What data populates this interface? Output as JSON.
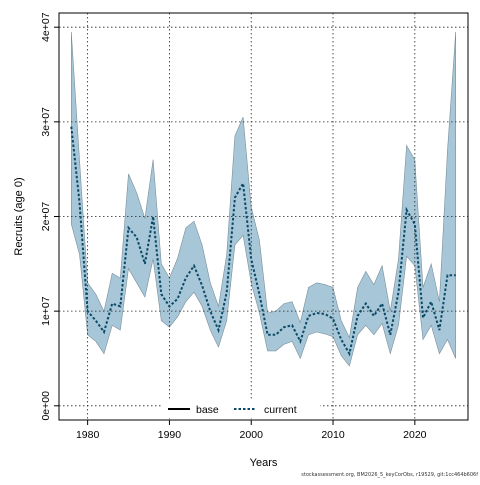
{
  "chart_data": {
    "type": "area",
    "xlabel": "Years",
    "ylabel": "Recruits (age 0)",
    "xlim": [
      1976.5,
      2026.5
    ],
    "ylim": [
      -1500000,
      41500000
    ],
    "x_ticks": [
      1980,
      1990,
      2000,
      2010,
      2020
    ],
    "x_tick_labels": [
      "1980",
      "1990",
      "2000",
      "2010",
      "2020"
    ],
    "y_ticks": [
      0,
      10000000,
      20000000,
      30000000,
      40000000
    ],
    "y_tick_labels": [
      "0e+00",
      "1e+07",
      "2e+07",
      "3e+07",
      "4e+07"
    ],
    "grid": true,
    "legend_position": "bottom-center",
    "legend": [
      {
        "name": "base",
        "style": "solid",
        "color": "#000000"
      },
      {
        "name": "current",
        "style": "dotted",
        "color": "#0a4a66"
      }
    ],
    "colors": {
      "band_fill": "#a7c6d7",
      "band_stroke": "#7a8f9a",
      "current_line": "#0a4a66",
      "grid": "#222222"
    },
    "x": [
      1978,
      1979,
      1980,
      1981,
      1982,
      1983,
      1984,
      1985,
      1986,
      1987,
      1988,
      1989,
      1990,
      1991,
      1992,
      1993,
      1994,
      1995,
      1996,
      1997,
      1998,
      1999,
      2000,
      2001,
      2002,
      2003,
      2004,
      2005,
      2006,
      2007,
      2008,
      2009,
      2010,
      2011,
      2012,
      2013,
      2014,
      2015,
      2016,
      2017,
      2018,
      2019,
      2020,
      2021,
      2022,
      2023,
      2024,
      2025
    ],
    "series": [
      {
        "name": "current",
        "values": [
          29500000,
          21500000,
          10000000,
          9000000,
          7800000,
          10800000,
          10500000,
          18800000,
          17800000,
          15000000,
          20000000,
          11800000,
          10500000,
          11300000,
          13500000,
          14800000,
          12700000,
          10000000,
          8000000,
          12000000,
          22000000,
          23500000,
          15500000,
          11800000,
          7500000,
          7500000,
          8300000,
          8500000,
          6800000,
          9500000,
          9800000,
          9700000,
          9200000,
          7000000,
          5500000,
          9500000,
          10800000,
          9500000,
          10800000,
          7500000,
          12000000,
          20700000,
          19200000,
          9300000,
          11000000,
          8000000,
          13800000,
          13800000
        ]
      },
      {
        "name": "",
        "lower": [
          19200000,
          16000000,
          7500000,
          6800000,
          5500000,
          8500000,
          8000000,
          14500000,
          13000000,
          11500000,
          15500000,
          9000000,
          8300000,
          9400000,
          11000000,
          12000000,
          10500000,
          8000000,
          6200000,
          9000000,
          17000000,
          18000000,
          13000000,
          9800000,
          5800000,
          5800000,
          6500000,
          6800000,
          5000000,
          7500000,
          7800000,
          7600000,
          7300000,
          5300000,
          4200000,
          7500000,
          8500000,
          7500000,
          8700000,
          5500000,
          8500000,
          15800000,
          14800000,
          7000000,
          8500000,
          5500000,
          7000000,
          5000000
        ],
        "upper": [
          39500000,
          26000000,
          13000000,
          11800000,
          10000000,
          14000000,
          13500000,
          24500000,
          22500000,
          19800000,
          26000000,
          15000000,
          13500000,
          15600000,
          18800000,
          19500000,
          17000000,
          13000000,
          10500000,
          16000000,
          28500000,
          30500000,
          21000000,
          17500000,
          9800000,
          10000000,
          10800000,
          11000000,
          8800000,
          12500000,
          13000000,
          12800000,
          12500000,
          9000000,
          7200000,
          12500000,
          14200000,
          12800000,
          14800000,
          10000000,
          15500000,
          27500000,
          26000000,
          12500000,
          15000000,
          11000000,
          27000000,
          39500000
        ]
      }
    ]
  },
  "footer": {
    "source_note": "stockassessment.org, BM2026_5_keyCorObs, r19529, git:1cc464b606f"
  }
}
